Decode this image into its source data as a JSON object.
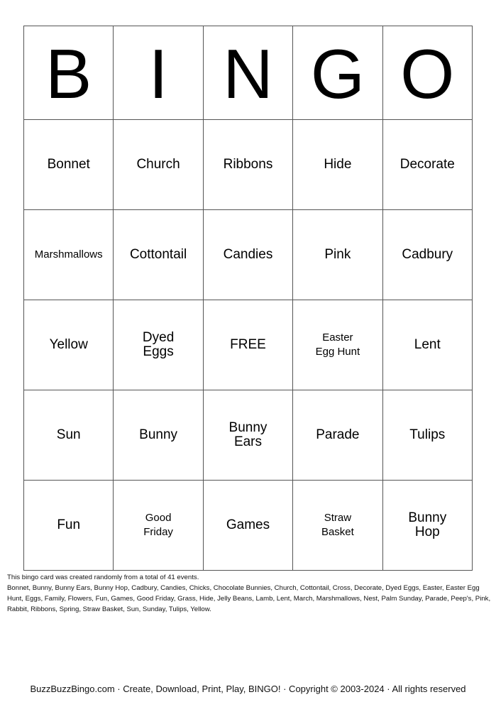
{
  "header": [
    "B",
    "I",
    "N",
    "G",
    "O"
  ],
  "rows": [
    [
      [
        "Bonnet"
      ],
      [
        "Church"
      ],
      [
        "Ribbons"
      ],
      [
        "Hide"
      ],
      [
        "Decorate"
      ]
    ],
    [
      [
        "Marshmallows"
      ],
      [
        "Cottontail"
      ],
      [
        "Candies"
      ],
      [
        "Pink"
      ],
      [
        "Cadbury"
      ]
    ],
    [
      [
        "Yellow"
      ],
      [
        "Dyed",
        "Eggs"
      ],
      [
        "FREE"
      ],
      [
        "Easter",
        "Egg Hunt"
      ],
      [
        "Lent"
      ]
    ],
    [
      [
        "Sun"
      ],
      [
        "Bunny"
      ],
      [
        "Bunny",
        "Ears"
      ],
      [
        "Parade"
      ],
      [
        "Tulips"
      ]
    ],
    [
      [
        "Fun"
      ],
      [
        "Good",
        "Friday"
      ],
      [
        "Games"
      ],
      [
        "Straw",
        "Basket"
      ],
      [
        "Bunny",
        "Hop"
      ]
    ]
  ],
  "note": {
    "intro": "This bingo card was created randomly from a total of 41 events.",
    "events": "Bonnet, Bunny, Bunny Ears, Bunny Hop, Cadbury, Candies, Chicks, Chocolate Bunnies, Church, Cottontail, Cross, Decorate, Dyed Eggs, Easter, Easter Egg Hunt, Eggs, Family, Flowers, Fun, Games, Good Friday, Grass, Hide, Jelly Beans, Lamb, Lent, March, Marshmallows, Nest, Palm Sunday, Parade, Peep's, Pink, Rabbit, Ribbons, Spring, Straw Basket, Sun, Sunday, Tulips, Yellow."
  },
  "footer": "BuzzBuzzBingo.com · Create, Download, Print, Play, BINGO! · Copyright © 2003-2024 · All rights reserved"
}
